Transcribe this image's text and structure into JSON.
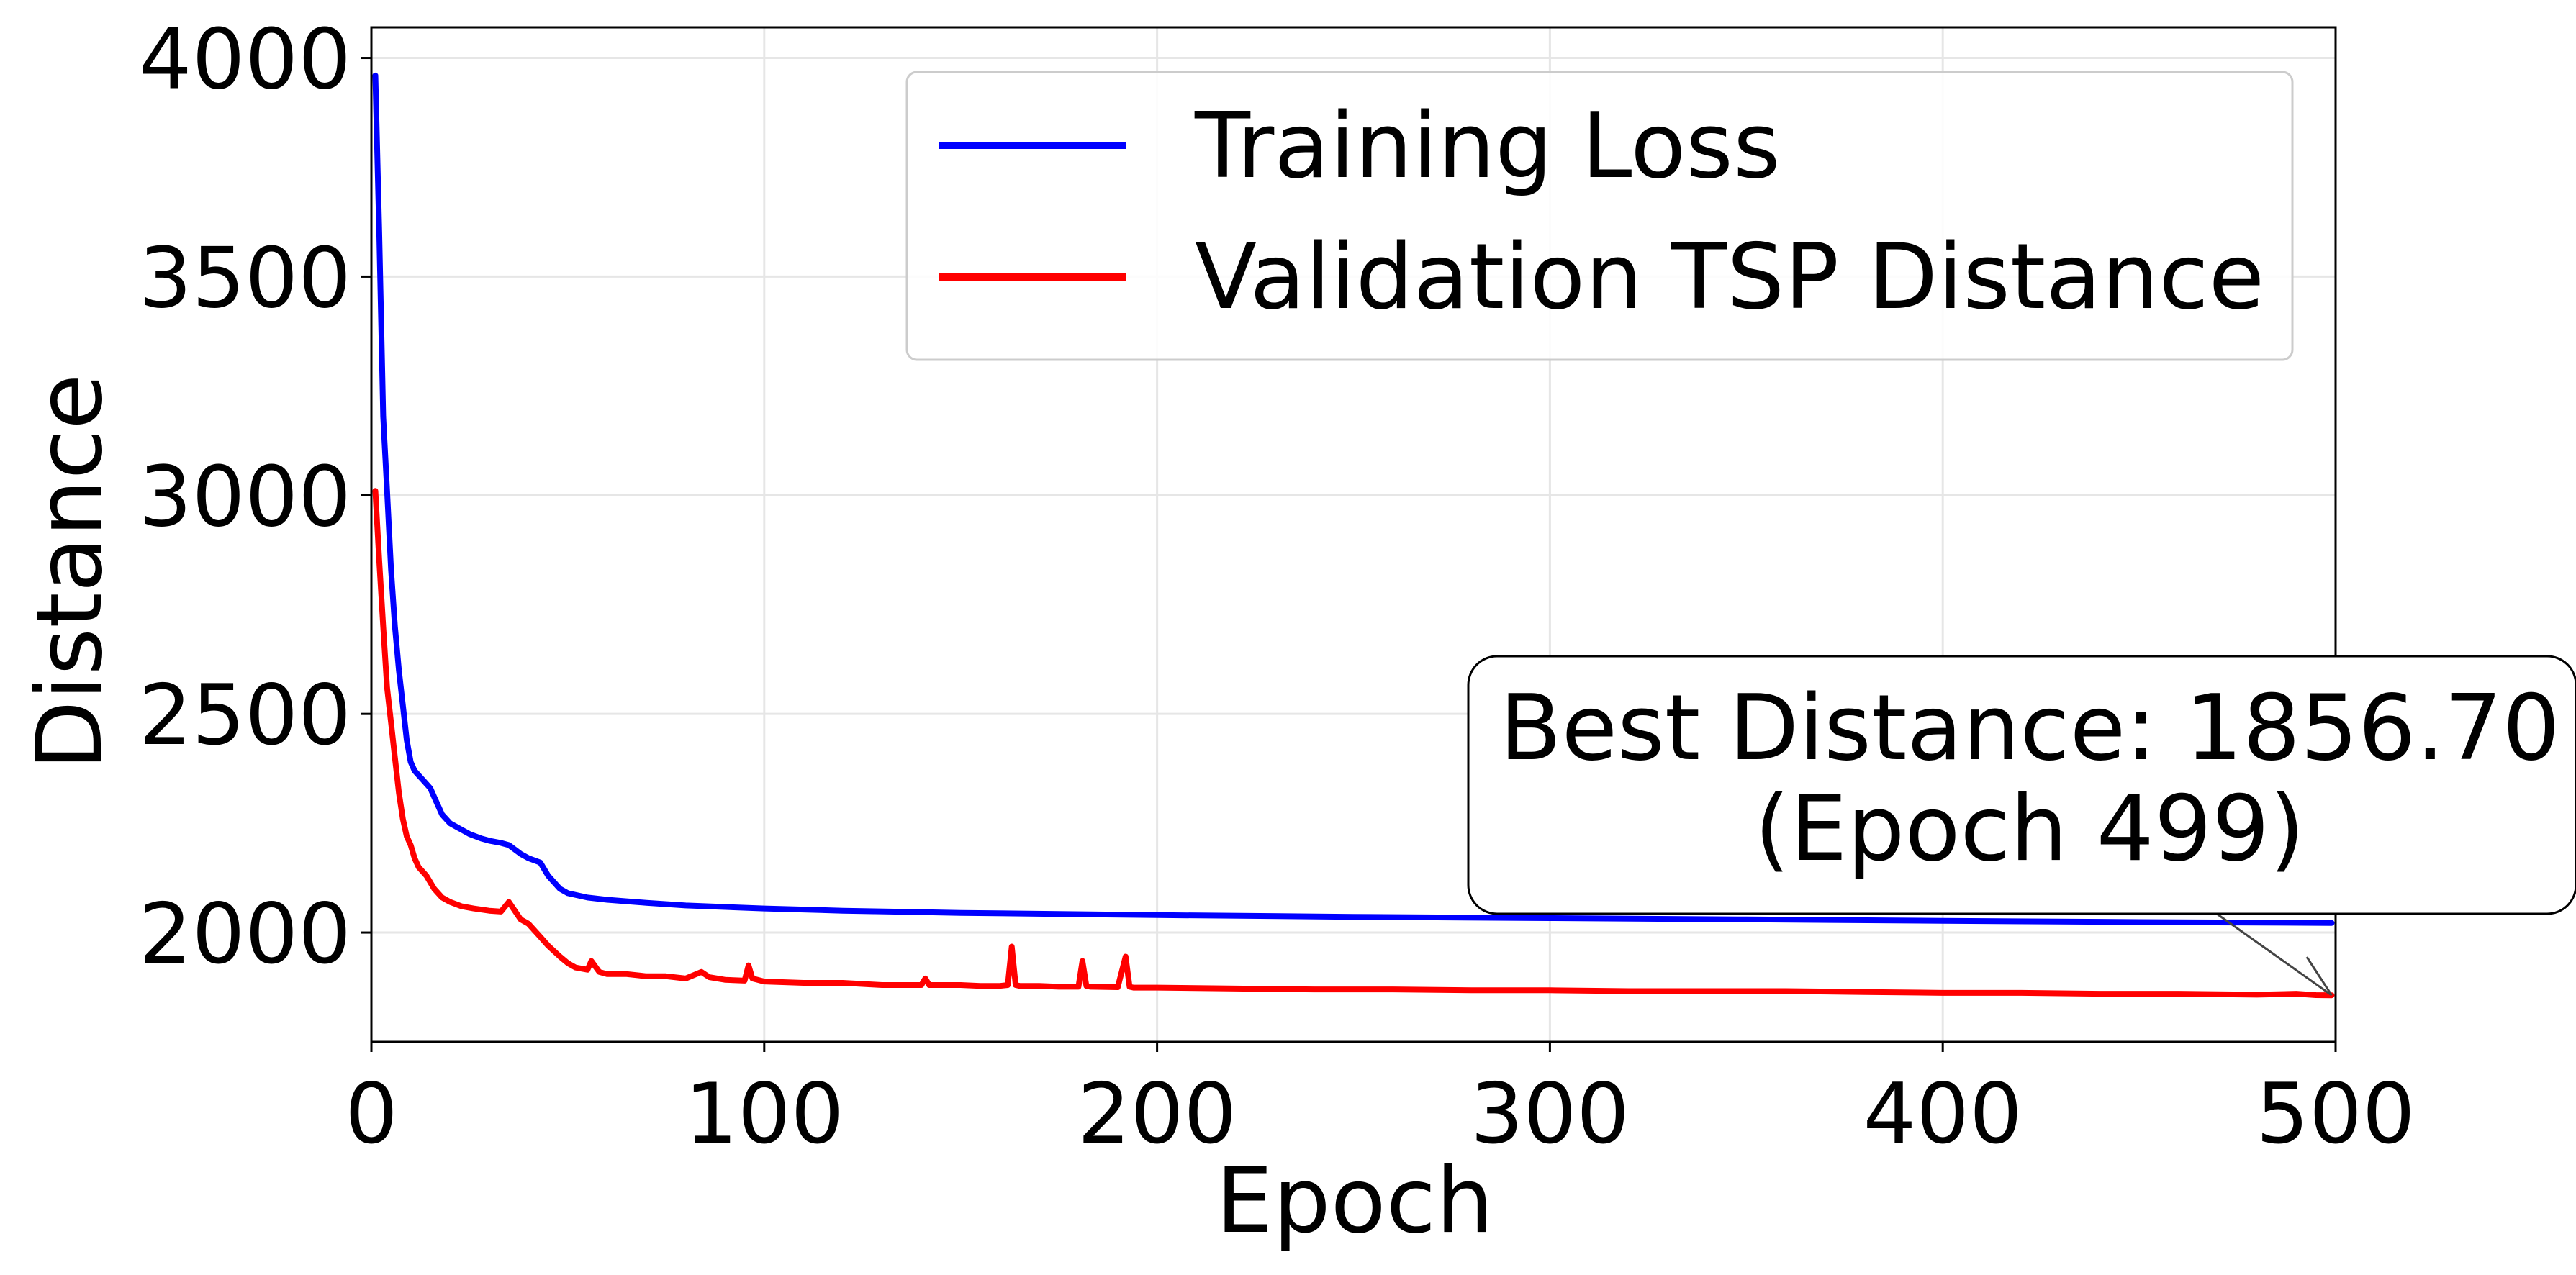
{
  "chart_data": {
    "type": "line",
    "title": "",
    "xlabel": "Epoch",
    "ylabel": "Distance",
    "xlim": [
      0,
      500
    ],
    "ylim": [
      1750,
      4070
    ],
    "xticks": [
      0,
      100,
      200,
      300,
      400,
      500
    ],
    "xtick_labels": [
      "0",
      "100",
      "200",
      "300",
      "400",
      "500"
    ],
    "yticks": [
      2000,
      2500,
      3000,
      3500,
      4000
    ],
    "ytick_labels": [
      "2000",
      "2500",
      "3000",
      "3500",
      "4000"
    ],
    "grid": true,
    "legend_position": "top-right",
    "series": [
      {
        "name": "Training Loss",
        "color": "#0000ff",
        "x": [
          1,
          2,
          3,
          4,
          5,
          6,
          7,
          8,
          9,
          10,
          11,
          12,
          13,
          14,
          15,
          16,
          18,
          20,
          22,
          25,
          28,
          30,
          33,
          35,
          38,
          40,
          43,
          45,
          48,
          50,
          55,
          60,
          70,
          80,
          100,
          120,
          150,
          200,
          250,
          300,
          350,
          400,
          450,
          499
        ],
        "values": [
          3960,
          3600,
          3180,
          3010,
          2830,
          2700,
          2600,
          2520,
          2440,
          2390,
          2370,
          2360,
          2350,
          2340,
          2330,
          2310,
          2270,
          2250,
          2240,
          2225,
          2215,
          2210,
          2205,
          2200,
          2180,
          2170,
          2160,
          2130,
          2100,
          2090,
          2080,
          2075,
          2068,
          2062,
          2055,
          2050,
          2045,
          2040,
          2036,
          2033,
          2030,
          2027,
          2024,
          2022
        ]
      },
      {
        "name": "Validation TSP Distance",
        "color": "#ff0000",
        "x": [
          1,
          2,
          3,
          4,
          5,
          6,
          7,
          8,
          9,
          10,
          11,
          12,
          14,
          16,
          18,
          20,
          23,
          26,
          30,
          33,
          35,
          38,
          40,
          43,
          45,
          48,
          50,
          52,
          55,
          56,
          58,
          60,
          65,
          70,
          75,
          80,
          84,
          86,
          90,
          95,
          96,
          97,
          100,
          110,
          120,
          130,
          140,
          141,
          142,
          150,
          155,
          160,
          162,
          163,
          164,
          165,
          170,
          175,
          180,
          181,
          182,
          183,
          190,
          192,
          193,
          194,
          200,
          220,
          240,
          260,
          280,
          300,
          320,
          340,
          360,
          380,
          400,
          420,
          440,
          460,
          480,
          490,
          495,
          499
        ],
        "values": [
          3010,
          2850,
          2700,
          2560,
          2480,
          2400,
          2320,
          2260,
          2220,
          2200,
          2170,
          2150,
          2130,
          2100,
          2080,
          2070,
          2060,
          2055,
          2050,
          2048,
          2070,
          2030,
          2020,
          1990,
          1970,
          1945,
          1930,
          1920,
          1915,
          1935,
          1910,
          1905,
          1905,
          1900,
          1900,
          1895,
          1910,
          1898,
          1892,
          1890,
          1925,
          1895,
          1888,
          1885,
          1885,
          1880,
          1880,
          1895,
          1880,
          1880,
          1878,
          1878,
          1880,
          1968,
          1880,
          1878,
          1878,
          1876,
          1876,
          1935,
          1878,
          1876,
          1875,
          1945,
          1876,
          1874,
          1874,
          1872,
          1870,
          1870,
          1868,
          1868,
          1866,
          1866,
          1866,
          1864,
          1862,
          1862,
          1860,
          1860,
          1858,
          1860,
          1857,
          1856.7
        ]
      }
    ],
    "annotations": [
      {
        "text_line1": "Best Distance: 1856.70",
        "text_line2": "(Epoch 499)",
        "target_x": 499,
        "target_y": 1856.7
      }
    ]
  }
}
